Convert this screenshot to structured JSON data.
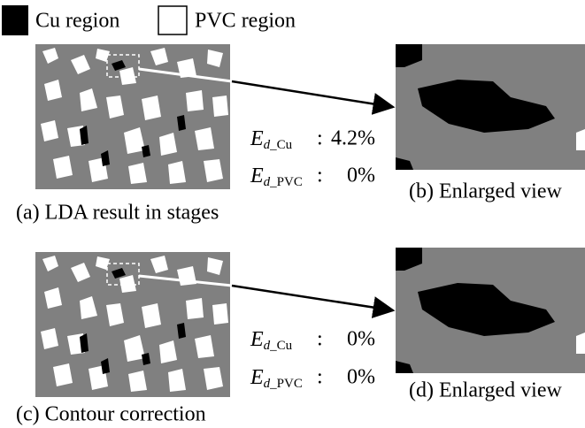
{
  "legend": [
    {
      "label": "Cu region"
    },
    {
      "label": "PVC region"
    }
  ],
  "panels": [
    {
      "caption": "(a) LDA result in stages",
      "metrics": [
        {
          "symbol": "E",
          "sub_italic": "d",
          "sub_rest": "_Cu",
          "separator": ":",
          "value": "4.2%"
        },
        {
          "symbol": "E",
          "sub_italic": "d",
          "sub_rest": "_PVC",
          "separator": ":",
          "value": "0%"
        }
      ]
    },
    {
      "caption": "(b) Enlarged view"
    },
    {
      "caption": "(c) Contour correction",
      "metrics": [
        {
          "symbol": "E",
          "sub_italic": "d",
          "sub_rest": "_Cu",
          "separator": ":",
          "value": "0%"
        },
        {
          "symbol": "E",
          "sub_italic": "d",
          "sub_rest": "_PVC",
          "separator": ":",
          "value": "0%"
        }
      ]
    },
    {
      "caption": "(d) Enlarged view"
    }
  ]
}
